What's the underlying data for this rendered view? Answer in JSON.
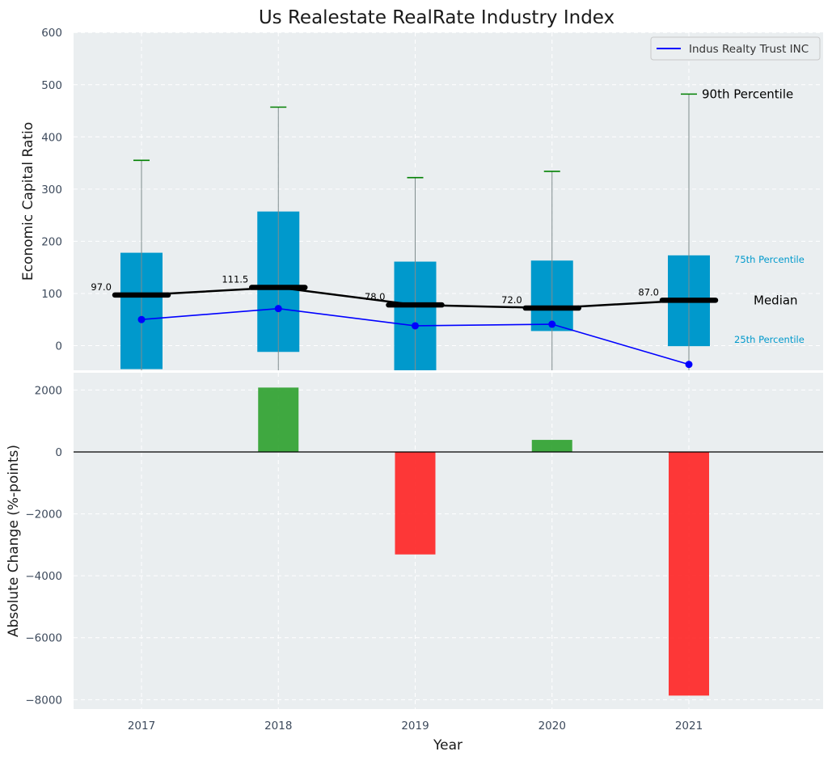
{
  "chart_data": {
    "title": "Us Realestate RealRate Industry Index",
    "years": [
      "2017",
      "2018",
      "2019",
      "2020",
      "2021"
    ],
    "xlabel": "Year",
    "top_panel": {
      "type": "box",
      "ylabel": "Economic Capital Ratio",
      "ylim": [
        -48,
        600
      ],
      "yticks": [
        0,
        100,
        200,
        300,
        400,
        500,
        600
      ],
      "box_color": "#0099cc",
      "p25": [
        -45,
        -12,
        -48,
        28,
        -1
      ],
      "p75": [
        178,
        257,
        161,
        163,
        173
      ],
      "p90": [
        355,
        457,
        322,
        334,
        482
      ],
      "median": [
        97.0,
        111.5,
        78.0,
        72.0,
        87.0
      ],
      "median_labels": [
        "97.0",
        "111.5",
        "78.0",
        "72.0",
        "87.0"
      ],
      "company_series": {
        "name": "Indus Realty Trust INC",
        "color": "#0000ff",
        "values": [
          50,
          71,
          38,
          41,
          -36
        ]
      },
      "annotations": {
        "p90": "90th Percentile",
        "p75": "75th Percentile",
        "median": "Median",
        "p25": "25th Percentile"
      },
      "grid": true,
      "legend_position": "top-right"
    },
    "bottom_panel": {
      "type": "bar",
      "ylabel": "Absolute Change (%-points)",
      "ylim": [
        -8400,
        2600
      ],
      "yticks": [
        -8000,
        -6000,
        -4000,
        -2000,
        0,
        2000
      ],
      "values": [
        0,
        2080,
        -3310,
        390,
        -7870
      ],
      "positive_color": "#2ca02c",
      "negative_color": "#ff2222",
      "grid": true
    }
  }
}
